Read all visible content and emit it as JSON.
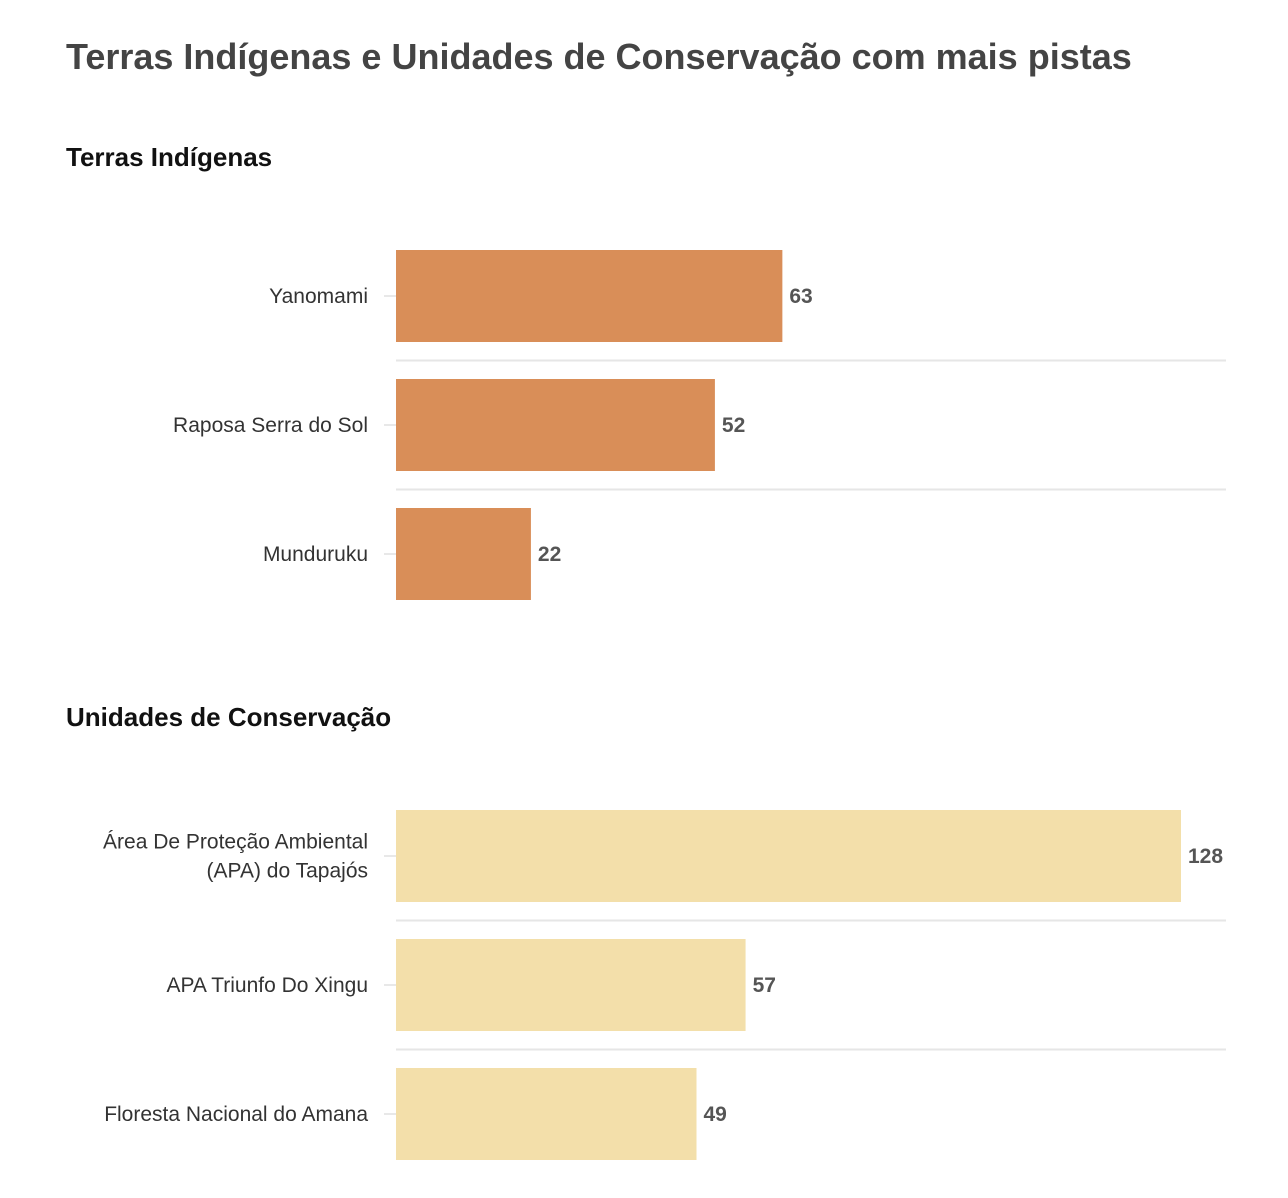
{
  "title": "Terras Indígenas e Unidades de Conservação com mais pistas",
  "chart_data": [
    {
      "type": "bar",
      "orientation": "horizontal",
      "title": "Terras Indígenas",
      "color": "#d98e58",
      "xlim": [
        0,
        128
      ],
      "grid": false,
      "categories": [
        [
          "Yanomami"
        ],
        [
          "Raposa Serra do Sol"
        ],
        [
          "Munduruku"
        ]
      ],
      "values": [
        63,
        52,
        22
      ]
    },
    {
      "type": "bar",
      "orientation": "horizontal",
      "title": "Unidades de Conservação",
      "color": "#f3dfaa",
      "xlim": [
        0,
        128
      ],
      "grid": false,
      "categories": [
        [
          "Área De Proteção Ambiental",
          "(APA) do Tapajós"
        ],
        [
          "APA Triunfo Do Xingu"
        ],
        [
          "Floresta Nacional do Amana"
        ]
      ],
      "values": [
        128,
        57,
        49
      ]
    }
  ]
}
